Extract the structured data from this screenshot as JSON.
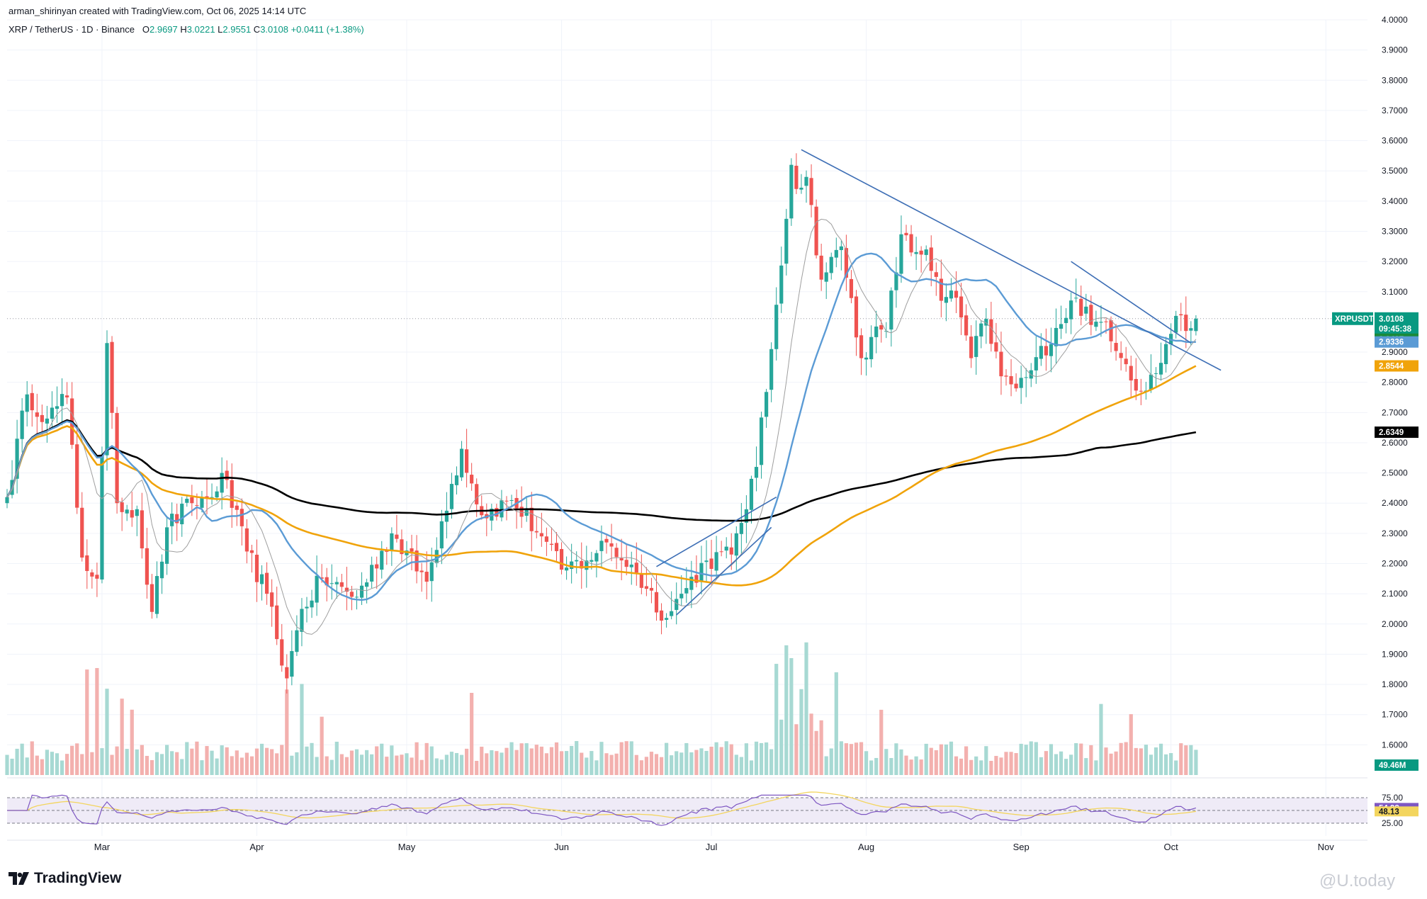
{
  "header": {
    "credit": "arman_shirinyan created with TradingView.com, Oct 06, 2025 14:14 UTC",
    "symbol": "XRP / TetherUS · 1D · Binance",
    "o_label": "O",
    "o_value": "2.9697",
    "h_label": "H",
    "h_value": "3.0221",
    "l_label": "L",
    "l_value": "2.9551",
    "c_label": "C",
    "c_value": "3.0108",
    "change": "+0.0411 (+1.38%)"
  },
  "colors": {
    "up": "#26a69a",
    "down": "#ef5350",
    "ma_fast": "#9e9e9e",
    "ma_blue": "#5b9bd5",
    "ma_orange": "#f0a30a",
    "ma_black": "#000000",
    "trendline": "#3d6eb5",
    "rsi_line": "#7e57c2",
    "rsi_ma": "#f3d55e"
  },
  "price_tags": [
    {
      "label": "XRPUSDT",
      "value": "3.0108",
      "sub": "09:45:38",
      "price": 3.0108,
      "color": "#089981"
    },
    {
      "value": "2.9427",
      "price": 2.9427,
      "color": "#1b8a3a"
    },
    {
      "value": "2.9336",
      "price": 2.9336,
      "color": "#5b9bd5"
    },
    {
      "value": "2.8544",
      "price": 2.8544,
      "color": "#f0a30a"
    },
    {
      "value": "2.6349",
      "price": 2.6349,
      "color": "#000000"
    },
    {
      "value": "49.46M",
      "color": "#089981",
      "kind": "volume"
    }
  ],
  "rsi_tags": [
    {
      "value": "54.98",
      "rsi": 54.98,
      "color": "#7e57c2"
    },
    {
      "value": "48.13",
      "rsi": 48.13,
      "color": "#f3d55e"
    }
  ],
  "chart_data": {
    "type": "candlestick",
    "title": "XRP / TetherUS · 1D · Binance",
    "y_ticks": [
      "4.0000",
      "3.9000",
      "3.8000",
      "3.7000",
      "3.6000",
      "3.5000",
      "3.4000",
      "3.3000",
      "3.2000",
      "3.1000",
      "2.9000",
      "2.8000",
      "2.7000",
      "2.6000",
      "2.5000",
      "2.4000",
      "2.3000",
      "2.2000",
      "2.1000",
      "2.0000",
      "1.9000",
      "1.8000",
      "1.7000",
      "1.6000"
    ],
    "ylim": [
      1.5,
      4.0
    ],
    "x_ticks": [
      "Mar",
      "Apr",
      "May",
      "Jun",
      "Jul",
      "Aug",
      "Sep",
      "Oct",
      "Nov"
    ],
    "date_range": [
      "2025-02-10",
      "2025-10-06"
    ],
    "close_anchors": [
      [
        "2025-02-10",
        2.42
      ],
      [
        "2025-02-14",
        2.76
      ],
      [
        "2025-02-18",
        2.68
      ],
      [
        "2025-02-22",
        2.75
      ],
      [
        "2025-02-25",
        2.22
      ],
      [
        "2025-02-28",
        2.15
      ],
      [
        "2025-03-02",
        2.93
      ],
      [
        "2025-03-04",
        2.4
      ],
      [
        "2025-03-08",
        2.38
      ],
      [
        "2025-03-11",
        2.04
      ],
      [
        "2025-03-14",
        2.32
      ],
      [
        "2025-03-19",
        2.4
      ],
      [
        "2025-03-23",
        2.42
      ],
      [
        "2025-03-25",
        2.5
      ],
      [
        "2025-03-30",
        2.24
      ],
      [
        "2025-04-03",
        2.1
      ],
      [
        "2025-04-07",
        1.82
      ],
      [
        "2025-04-10",
        2.05
      ],
      [
        "2025-04-14",
        2.15
      ],
      [
        "2025-04-21",
        2.09
      ],
      [
        "2025-04-28",
        2.3
      ],
      [
        "2025-05-05",
        2.14
      ],
      [
        "2025-05-08",
        2.34
      ],
      [
        "2025-05-12",
        2.58
      ],
      [
        "2025-05-16",
        2.36
      ],
      [
        "2025-05-22",
        2.41
      ],
      [
        "2025-05-28",
        2.29
      ],
      [
        "2025-06-01",
        2.18
      ],
      [
        "2025-06-06",
        2.21
      ],
      [
        "2025-06-10",
        2.27
      ],
      [
        "2025-06-16",
        2.17
      ],
      [
        "2025-06-22",
        2.02
      ],
      [
        "2025-06-25",
        2.1
      ],
      [
        "2025-06-30",
        2.21
      ],
      [
        "2025-07-05",
        2.23
      ],
      [
        "2025-07-10",
        2.52
      ],
      [
        "2025-07-13",
        2.91
      ],
      [
        "2025-07-17",
        3.52
      ],
      [
        "2025-07-18",
        3.44
      ],
      [
        "2025-07-20",
        3.48
      ],
      [
        "2025-07-23",
        3.14
      ],
      [
        "2025-07-27",
        3.25
      ],
      [
        "2025-07-31",
        2.88
      ],
      [
        "2025-08-02",
        2.95
      ],
      [
        "2025-08-05",
        2.97
      ],
      [
        "2025-08-08",
        3.29
      ],
      [
        "2025-08-10",
        3.23
      ],
      [
        "2025-08-13",
        3.24
      ],
      [
        "2025-08-16",
        3.07
      ],
      [
        "2025-08-19",
        3.08
      ],
      [
        "2025-08-22",
        2.88
      ],
      [
        "2025-08-25",
        3.01
      ],
      [
        "2025-08-28",
        2.82
      ],
      [
        "2025-08-31",
        2.78
      ],
      [
        "2025-09-03",
        2.84
      ],
      [
        "2025-09-08",
        2.98
      ],
      [
        "2025-09-12",
        3.08
      ],
      [
        "2025-09-15",
        2.99
      ],
      [
        "2025-09-18",
        3.0
      ],
      [
        "2025-09-22",
        2.86
      ],
      [
        "2025-09-25",
        2.77
      ],
      [
        "2025-09-28",
        2.83
      ],
      [
        "2025-10-02",
        3.02
      ],
      [
        "2025-10-04",
        2.97
      ],
      [
        "2025-10-06",
        3.0108
      ]
    ],
    "last_candle": {
      "open": 2.9697,
      "high": 3.0221,
      "low": 2.9551,
      "close": 3.0108
    },
    "ma_last": {
      "ma_fast": 2.9427,
      "ma_blue": 2.9336,
      "ma_orange": 2.8544,
      "ma_black": 2.6349
    },
    "trendlines": [
      {
        "from": [
          "2025-07-19",
          3.57
        ],
        "to": [
          "2025-10-11",
          2.84
        ]
      },
      {
        "from": [
          "2025-09-11",
          3.2
        ],
        "to": [
          "2025-10-05",
          2.93
        ]
      },
      {
        "from": [
          "2025-06-24",
          2.03
        ],
        "to": [
          "2025-07-13",
          2.32
        ]
      },
      {
        "from": [
          "2025-06-20",
          2.19
        ],
        "to": [
          "2025-07-14",
          2.42
        ]
      }
    ],
    "volume_last": "49.46M",
    "rsi_levels": [
      "75.00",
      "25.00"
    ],
    "rsi_last": 54.98,
    "rsi_ma_last": 48.13
  },
  "branding": {
    "logo_text": "TradingView",
    "watermark": "@U.today"
  }
}
